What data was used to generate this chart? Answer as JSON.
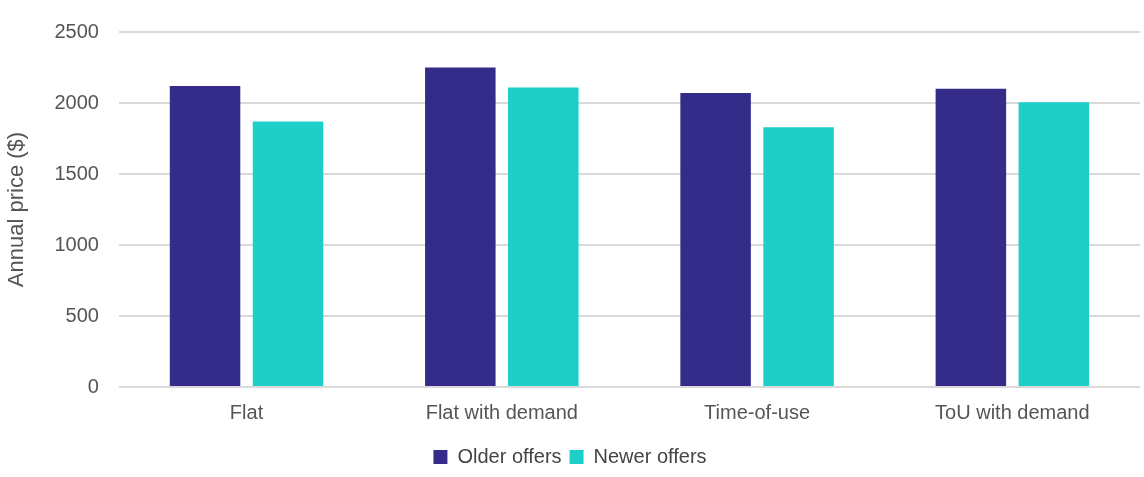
{
  "chart_data": {
    "type": "bar",
    "ylabel": "Annual price ($)",
    "categories": [
      "Flat",
      "Flat with demand",
      "Time-of-use",
      "ToU with demand"
    ],
    "series": [
      {
        "name": "Older offers",
        "color": "#352c8a",
        "values": [
          2120,
          2250,
          2070,
          2100
        ]
      },
      {
        "name": "Newer offers",
        "color": "#1ecfc8",
        "values": [
          1870,
          2110,
          1830,
          2005
        ]
      }
    ],
    "ylim": [
      0,
      2500
    ],
    "yticks": [
      0,
      500,
      1000,
      1500,
      2000,
      2500
    ],
    "grid": "y",
    "legend": "bottom"
  }
}
